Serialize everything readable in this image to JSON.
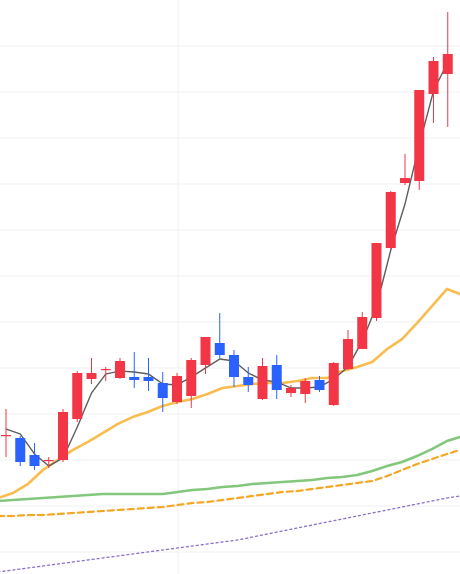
{
  "colors": {
    "up": "#f23645",
    "down": "#2962ff",
    "grid": "#f0f0f3",
    "ma_short": "#5d5d5d",
    "ma_mid": "#f9bc4f",
    "ma_long": "#82c77c",
    "dashed_orange": "#f5a623",
    "dotted_purple": "#8b6fc9"
  },
  "chart_data": {
    "type": "candlestick",
    "title": "",
    "xlabel": "",
    "ylabel": "",
    "grid": true,
    "legend": "none",
    "ylim": [
      0,
      574
    ],
    "candles": [
      {
        "o": 139,
        "h": 165,
        "l": 117,
        "c": 139
      },
      {
        "o": 136,
        "h": 138,
        "l": 108,
        "c": 112
      },
      {
        "o": 119,
        "h": 131,
        "l": 104,
        "c": 108
      },
      {
        "o": 114,
        "h": 117,
        "l": 106,
        "c": 114
      },
      {
        "o": 114,
        "h": 165,
        "l": 112,
        "c": 162
      },
      {
        "o": 155,
        "h": 203,
        "l": 152,
        "c": 201
      },
      {
        "o": 195,
        "h": 216,
        "l": 190,
        "c": 201
      },
      {
        "o": 205,
        "h": 207,
        "l": 193,
        "c": 205
      },
      {
        "o": 196,
        "h": 216,
        "l": 195,
        "c": 213
      },
      {
        "o": 197,
        "h": 222,
        "l": 186,
        "c": 194
      },
      {
        "o": 197,
        "h": 216,
        "l": 183,
        "c": 193
      },
      {
        "o": 191,
        "h": 202,
        "l": 162,
        "c": 176
      },
      {
        "o": 172,
        "h": 201,
        "l": 170,
        "c": 198
      },
      {
        "o": 178,
        "h": 216,
        "l": 166,
        "c": 214
      },
      {
        "o": 209,
        "h": 237,
        "l": 200,
        "c": 237
      },
      {
        "o": 231,
        "h": 261,
        "l": 216,
        "c": 219
      },
      {
        "o": 219,
        "h": 224,
        "l": 187,
        "c": 197
      },
      {
        "o": 197,
        "h": 207,
        "l": 182,
        "c": 189
      },
      {
        "o": 175,
        "h": 216,
        "l": 174,
        "c": 208
      },
      {
        "o": 209,
        "h": 219,
        "l": 175,
        "c": 184
      },
      {
        "o": 181,
        "h": 189,
        "l": 177,
        "c": 186
      },
      {
        "o": 180,
        "h": 196,
        "l": 171,
        "c": 193
      },
      {
        "o": 194,
        "h": 198,
        "l": 182,
        "c": 184
      },
      {
        "o": 169,
        "h": 212,
        "l": 168,
        "c": 211
      },
      {
        "o": 205,
        "h": 244,
        "l": 204,
        "c": 235
      },
      {
        "o": 225,
        "h": 262,
        "l": 225,
        "c": 257
      },
      {
        "o": 256,
        "h": 331,
        "l": 253,
        "c": 331
      },
      {
        "o": 326,
        "h": 383,
        "l": 324,
        "c": 382
      },
      {
        "o": 391,
        "h": 420,
        "l": 389,
        "c": 396
      },
      {
        "o": 393,
        "h": 484,
        "l": 384,
        "c": 484
      },
      {
        "o": 480,
        "h": 517,
        "l": 451,
        "c": 513
      },
      {
        "o": 500,
        "h": 562,
        "l": 447,
        "c": 520
      }
    ],
    "series": [
      {
        "values": [
          145,
          140,
          120,
          108,
          116,
          147,
          181,
          200,
          203,
          202,
          200,
          190,
          189,
          197,
          206,
          215,
          213,
          201,
          194,
          192,
          186,
          186,
          187,
          195,
          207,
          233,
          268,
          324,
          370,
          429,
          483,
          512
        ]
      },
      {
        "values": [
          76,
          81,
          90,
          104,
          114,
          124,
          132,
          141,
          150,
          157,
          162,
          168,
          172,
          175,
          180,
          186,
          188,
          190,
          191,
          191,
          193,
          196,
          196,
          203,
          207,
          212,
          225,
          235,
          251,
          268,
          285,
          280
        ]
      },
      {
        "values": [
          73,
          74,
          75,
          76,
          77,
          78,
          79,
          80,
          80,
          80,
          80,
          80,
          82,
          84,
          85,
          87,
          88,
          90,
          91,
          92,
          93,
          94,
          96,
          97,
          99,
          103,
          108,
          112,
          118,
          125,
          133,
          137
        ]
      },
      {
        "values": [
          58,
          58,
          59,
          59,
          60,
          61,
          62,
          63,
          64,
          65,
          66,
          67,
          69,
          71,
          72,
          74,
          76,
          78,
          80,
          82,
          83,
          85,
          87,
          89,
          91,
          93,
          98,
          104,
          110,
          115,
          120,
          124
        ]
      },
      {
        "values": [
          2,
          4,
          6,
          8,
          10,
          12,
          14,
          16,
          18,
          20,
          22,
          24,
          26,
          28,
          30,
          32,
          34,
          37,
          40,
          43,
          46,
          49,
          52,
          55,
          58,
          61,
          64,
          67,
          70,
          73,
          76,
          78
        ]
      }
    ]
  }
}
